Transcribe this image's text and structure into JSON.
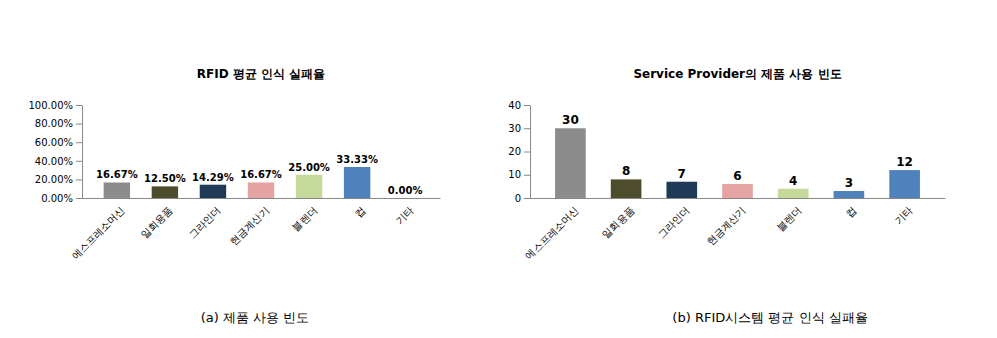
{
  "chart_data": [
    {
      "type": "bar",
      "title": "RFID 평균 인식 실패율",
      "caption": "(a) 제품 사용 빈도",
      "categories": [
        "에스프레소머신",
        "일회용품",
        "그라인더",
        "현금계산기",
        "블렌더",
        "컵",
        "기타"
      ],
      "values": [
        16.67,
        12.5,
        14.29,
        16.67,
        25,
        33.33,
        0
      ],
      "value_labels": [
        "16.67%",
        "12.50%",
        "14.29%",
        "16.67%",
        "25.00%",
        "33.33%",
        "0.00%"
      ],
      "colors": [
        "#8c8c8c",
        "#4d4d2e",
        "#1f3a56",
        "#e6a3a3",
        "#c4d99a",
        "#4f81bd",
        "#4f81bd"
      ],
      "ylim": [
        0,
        100
      ],
      "yticks": [
        {
          "value": 0,
          "label": "0.00%"
        },
        {
          "value": 20,
          "label": "20.00%"
        },
        {
          "value": 40,
          "label": "40.00%"
        },
        {
          "value": 60,
          "label": "60.00%"
        },
        {
          "value": 80,
          "label": "80.00%"
        },
        {
          "value": 100,
          "label": "100.00%"
        }
      ],
      "grid": false,
      "data_labels": true
    },
    {
      "type": "bar",
      "title": "Service Provider의 제품 사용 빈도",
      "caption": "(b) RFID시스템 평균 인식 실패율",
      "categories": [
        "에스프레소머신",
        "일회용품",
        "그라인더",
        "현금계산기",
        "블렌더",
        "컵",
        "기타"
      ],
      "values": [
        30,
        8,
        7,
        6,
        4,
        3,
        12
      ],
      "colors": [
        "#8c8c8c",
        "#4d4d2e",
        "#1f3a56",
        "#e6a3a3",
        "#c4d99a",
        "#4f81bd",
        "#4f81bd"
      ],
      "ylim": [
        0,
        40
      ],
      "yticks": [
        0,
        10,
        20,
        30,
        40
      ],
      "grid": false,
      "data_labels": true
    }
  ]
}
